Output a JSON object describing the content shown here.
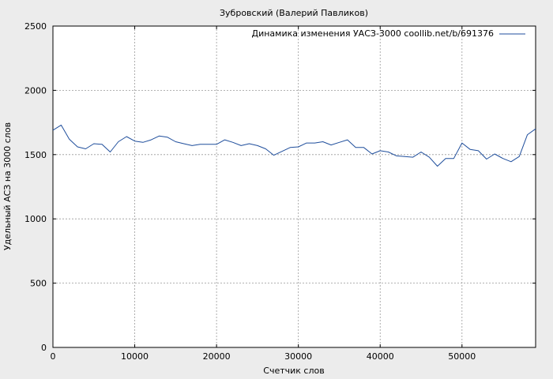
{
  "chart_data": {
    "type": "line",
    "title": "Зубровский (Валерий Павликов)",
    "xlabel": "Счетчик слов",
    "ylabel": "Удельный АСЗ на 3000 слов",
    "xlim": [
      0,
      59000
    ],
    "ylim": [
      0,
      2500
    ],
    "xticks": [
      0,
      10000,
      20000,
      30000,
      40000,
      50000
    ],
    "xtick_labels": [
      "0",
      "10000",
      "20000",
      "30000",
      "40000",
      "50000"
    ],
    "yticks": [
      0,
      500,
      1000,
      1500,
      2000,
      2500
    ],
    "ytick_labels": [
      "0",
      "500",
      "1000",
      "1500",
      "2000",
      "2500"
    ],
    "grid": true,
    "legend_position": "top-right",
    "series": [
      {
        "name": "Динамика изменения УАСЗ-3000 coollib.net/b/691376",
        "color": "#1f4e9c",
        "x": [
          0,
          1000,
          2000,
          3000,
          4000,
          5000,
          6000,
          7000,
          8000,
          9000,
          10000,
          11000,
          12000,
          13000,
          14000,
          15000,
          16000,
          17000,
          18000,
          19000,
          20000,
          21000,
          22000,
          23000,
          24000,
          25000,
          26000,
          27000,
          28000,
          29000,
          30000,
          31000,
          32000,
          33000,
          34000,
          35000,
          36000,
          37000,
          38000,
          39000,
          40000,
          41000,
          42000,
          43000,
          44000,
          45000,
          46000,
          47000,
          48000,
          49000,
          50000,
          51000,
          52000,
          53000,
          54000,
          55000,
          56000,
          57000,
          58000,
          59000
        ],
        "y": [
          1690,
          1730,
          1620,
          1560,
          1545,
          1585,
          1580,
          1520,
          1600,
          1640,
          1605,
          1595,
          1615,
          1645,
          1635,
          1600,
          1585,
          1570,
          1580,
          1580,
          1580,
          1615,
          1595,
          1570,
          1585,
          1570,
          1545,
          1495,
          1525,
          1555,
          1560,
          1590,
          1590,
          1600,
          1575,
          1595,
          1615,
          1555,
          1555,
          1505,
          1530,
          1520,
          1490,
          1485,
          1480,
          1520,
          1480,
          1410,
          1470,
          1470,
          1590,
          1540,
          1530,
          1465,
          1505,
          1470,
          1445,
          1485,
          1655,
          1700
        ]
      }
    ]
  }
}
